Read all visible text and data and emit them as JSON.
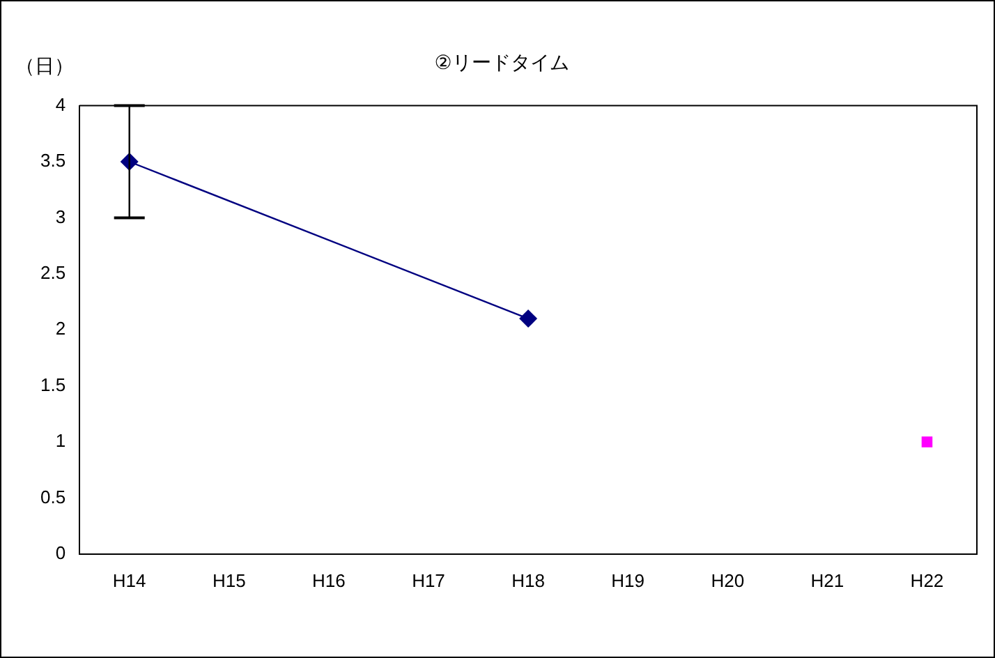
{
  "chart_data": {
    "type": "line",
    "title": "②リードタイム",
    "ylabel": "（日）",
    "categories": [
      "H14",
      "H15",
      "H16",
      "H17",
      "H18",
      "H19",
      "H20",
      "H21",
      "H22"
    ],
    "series": [
      {
        "type": "line",
        "color": "#000080",
        "marker": "diamond",
        "values": [
          3.5,
          null,
          null,
          null,
          2.1,
          null,
          null,
          null,
          null
        ],
        "errors": [
          [
            3,
            4
          ],
          null,
          null,
          null,
          null,
          null,
          null,
          null,
          null
        ]
      },
      {
        "type": "scatter",
        "color": "#ff00ff",
        "marker": "square",
        "values": [
          null,
          null,
          null,
          null,
          null,
          null,
          null,
          null,
          1
        ]
      }
    ],
    "ylim": [
      0,
      4
    ],
    "yticks": [
      0,
      0.5,
      1,
      1.5,
      2,
      2.5,
      3,
      3.5,
      4
    ],
    "grid": false,
    "legend": false
  }
}
